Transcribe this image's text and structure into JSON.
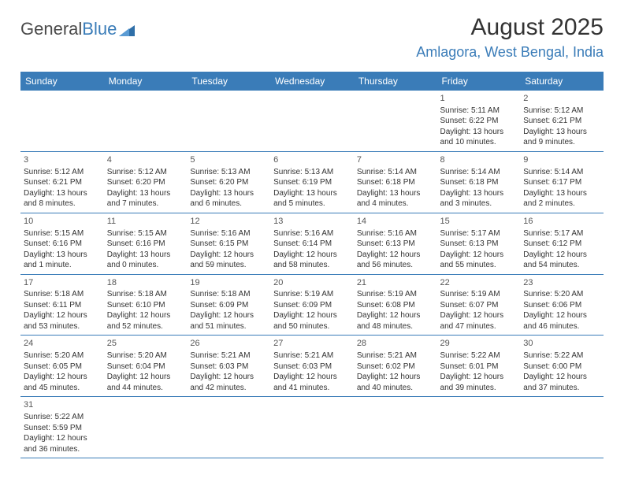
{
  "brand": {
    "part1": "General",
    "part2": "Blue",
    "logo_color": "#3a7cb8",
    "text_color": "#4a4a4a"
  },
  "title": "August 2025",
  "location": "Amlagora, West Bengal, India",
  "colors": {
    "header_bg": "#3a7cb8",
    "header_fg": "#ffffff",
    "border": "#3a7cb8",
    "text": "#333333"
  },
  "day_headers": [
    "Sunday",
    "Monday",
    "Tuesday",
    "Wednesday",
    "Thursday",
    "Friday",
    "Saturday"
  ],
  "weeks": [
    [
      null,
      null,
      null,
      null,
      null,
      {
        "n": "1",
        "sr": "Sunrise: 5:11 AM",
        "ss": "Sunset: 6:22 PM",
        "dl": "Daylight: 13 hours and 10 minutes."
      },
      {
        "n": "2",
        "sr": "Sunrise: 5:12 AM",
        "ss": "Sunset: 6:21 PM",
        "dl": "Daylight: 13 hours and 9 minutes."
      }
    ],
    [
      {
        "n": "3",
        "sr": "Sunrise: 5:12 AM",
        "ss": "Sunset: 6:21 PM",
        "dl": "Daylight: 13 hours and 8 minutes."
      },
      {
        "n": "4",
        "sr": "Sunrise: 5:12 AM",
        "ss": "Sunset: 6:20 PM",
        "dl": "Daylight: 13 hours and 7 minutes."
      },
      {
        "n": "5",
        "sr": "Sunrise: 5:13 AM",
        "ss": "Sunset: 6:20 PM",
        "dl": "Daylight: 13 hours and 6 minutes."
      },
      {
        "n": "6",
        "sr": "Sunrise: 5:13 AM",
        "ss": "Sunset: 6:19 PM",
        "dl": "Daylight: 13 hours and 5 minutes."
      },
      {
        "n": "7",
        "sr": "Sunrise: 5:14 AM",
        "ss": "Sunset: 6:18 PM",
        "dl": "Daylight: 13 hours and 4 minutes."
      },
      {
        "n": "8",
        "sr": "Sunrise: 5:14 AM",
        "ss": "Sunset: 6:18 PM",
        "dl": "Daylight: 13 hours and 3 minutes."
      },
      {
        "n": "9",
        "sr": "Sunrise: 5:14 AM",
        "ss": "Sunset: 6:17 PM",
        "dl": "Daylight: 13 hours and 2 minutes."
      }
    ],
    [
      {
        "n": "10",
        "sr": "Sunrise: 5:15 AM",
        "ss": "Sunset: 6:16 PM",
        "dl": "Daylight: 13 hours and 1 minute."
      },
      {
        "n": "11",
        "sr": "Sunrise: 5:15 AM",
        "ss": "Sunset: 6:16 PM",
        "dl": "Daylight: 13 hours and 0 minutes."
      },
      {
        "n": "12",
        "sr": "Sunrise: 5:16 AM",
        "ss": "Sunset: 6:15 PM",
        "dl": "Daylight: 12 hours and 59 minutes."
      },
      {
        "n": "13",
        "sr": "Sunrise: 5:16 AM",
        "ss": "Sunset: 6:14 PM",
        "dl": "Daylight: 12 hours and 58 minutes."
      },
      {
        "n": "14",
        "sr": "Sunrise: 5:16 AM",
        "ss": "Sunset: 6:13 PM",
        "dl": "Daylight: 12 hours and 56 minutes."
      },
      {
        "n": "15",
        "sr": "Sunrise: 5:17 AM",
        "ss": "Sunset: 6:13 PM",
        "dl": "Daylight: 12 hours and 55 minutes."
      },
      {
        "n": "16",
        "sr": "Sunrise: 5:17 AM",
        "ss": "Sunset: 6:12 PM",
        "dl": "Daylight: 12 hours and 54 minutes."
      }
    ],
    [
      {
        "n": "17",
        "sr": "Sunrise: 5:18 AM",
        "ss": "Sunset: 6:11 PM",
        "dl": "Daylight: 12 hours and 53 minutes."
      },
      {
        "n": "18",
        "sr": "Sunrise: 5:18 AM",
        "ss": "Sunset: 6:10 PM",
        "dl": "Daylight: 12 hours and 52 minutes."
      },
      {
        "n": "19",
        "sr": "Sunrise: 5:18 AM",
        "ss": "Sunset: 6:09 PM",
        "dl": "Daylight: 12 hours and 51 minutes."
      },
      {
        "n": "20",
        "sr": "Sunrise: 5:19 AM",
        "ss": "Sunset: 6:09 PM",
        "dl": "Daylight: 12 hours and 50 minutes."
      },
      {
        "n": "21",
        "sr": "Sunrise: 5:19 AM",
        "ss": "Sunset: 6:08 PM",
        "dl": "Daylight: 12 hours and 48 minutes."
      },
      {
        "n": "22",
        "sr": "Sunrise: 5:19 AM",
        "ss": "Sunset: 6:07 PM",
        "dl": "Daylight: 12 hours and 47 minutes."
      },
      {
        "n": "23",
        "sr": "Sunrise: 5:20 AM",
        "ss": "Sunset: 6:06 PM",
        "dl": "Daylight: 12 hours and 46 minutes."
      }
    ],
    [
      {
        "n": "24",
        "sr": "Sunrise: 5:20 AM",
        "ss": "Sunset: 6:05 PM",
        "dl": "Daylight: 12 hours and 45 minutes."
      },
      {
        "n": "25",
        "sr": "Sunrise: 5:20 AM",
        "ss": "Sunset: 6:04 PM",
        "dl": "Daylight: 12 hours and 44 minutes."
      },
      {
        "n": "26",
        "sr": "Sunrise: 5:21 AM",
        "ss": "Sunset: 6:03 PM",
        "dl": "Daylight: 12 hours and 42 minutes."
      },
      {
        "n": "27",
        "sr": "Sunrise: 5:21 AM",
        "ss": "Sunset: 6:03 PM",
        "dl": "Daylight: 12 hours and 41 minutes."
      },
      {
        "n": "28",
        "sr": "Sunrise: 5:21 AM",
        "ss": "Sunset: 6:02 PM",
        "dl": "Daylight: 12 hours and 40 minutes."
      },
      {
        "n": "29",
        "sr": "Sunrise: 5:22 AM",
        "ss": "Sunset: 6:01 PM",
        "dl": "Daylight: 12 hours and 39 minutes."
      },
      {
        "n": "30",
        "sr": "Sunrise: 5:22 AM",
        "ss": "Sunset: 6:00 PM",
        "dl": "Daylight: 12 hours and 37 minutes."
      }
    ],
    [
      {
        "n": "31",
        "sr": "Sunrise: 5:22 AM",
        "ss": "Sunset: 5:59 PM",
        "dl": "Daylight: 12 hours and 36 minutes."
      },
      null,
      null,
      null,
      null,
      null,
      null
    ]
  ]
}
